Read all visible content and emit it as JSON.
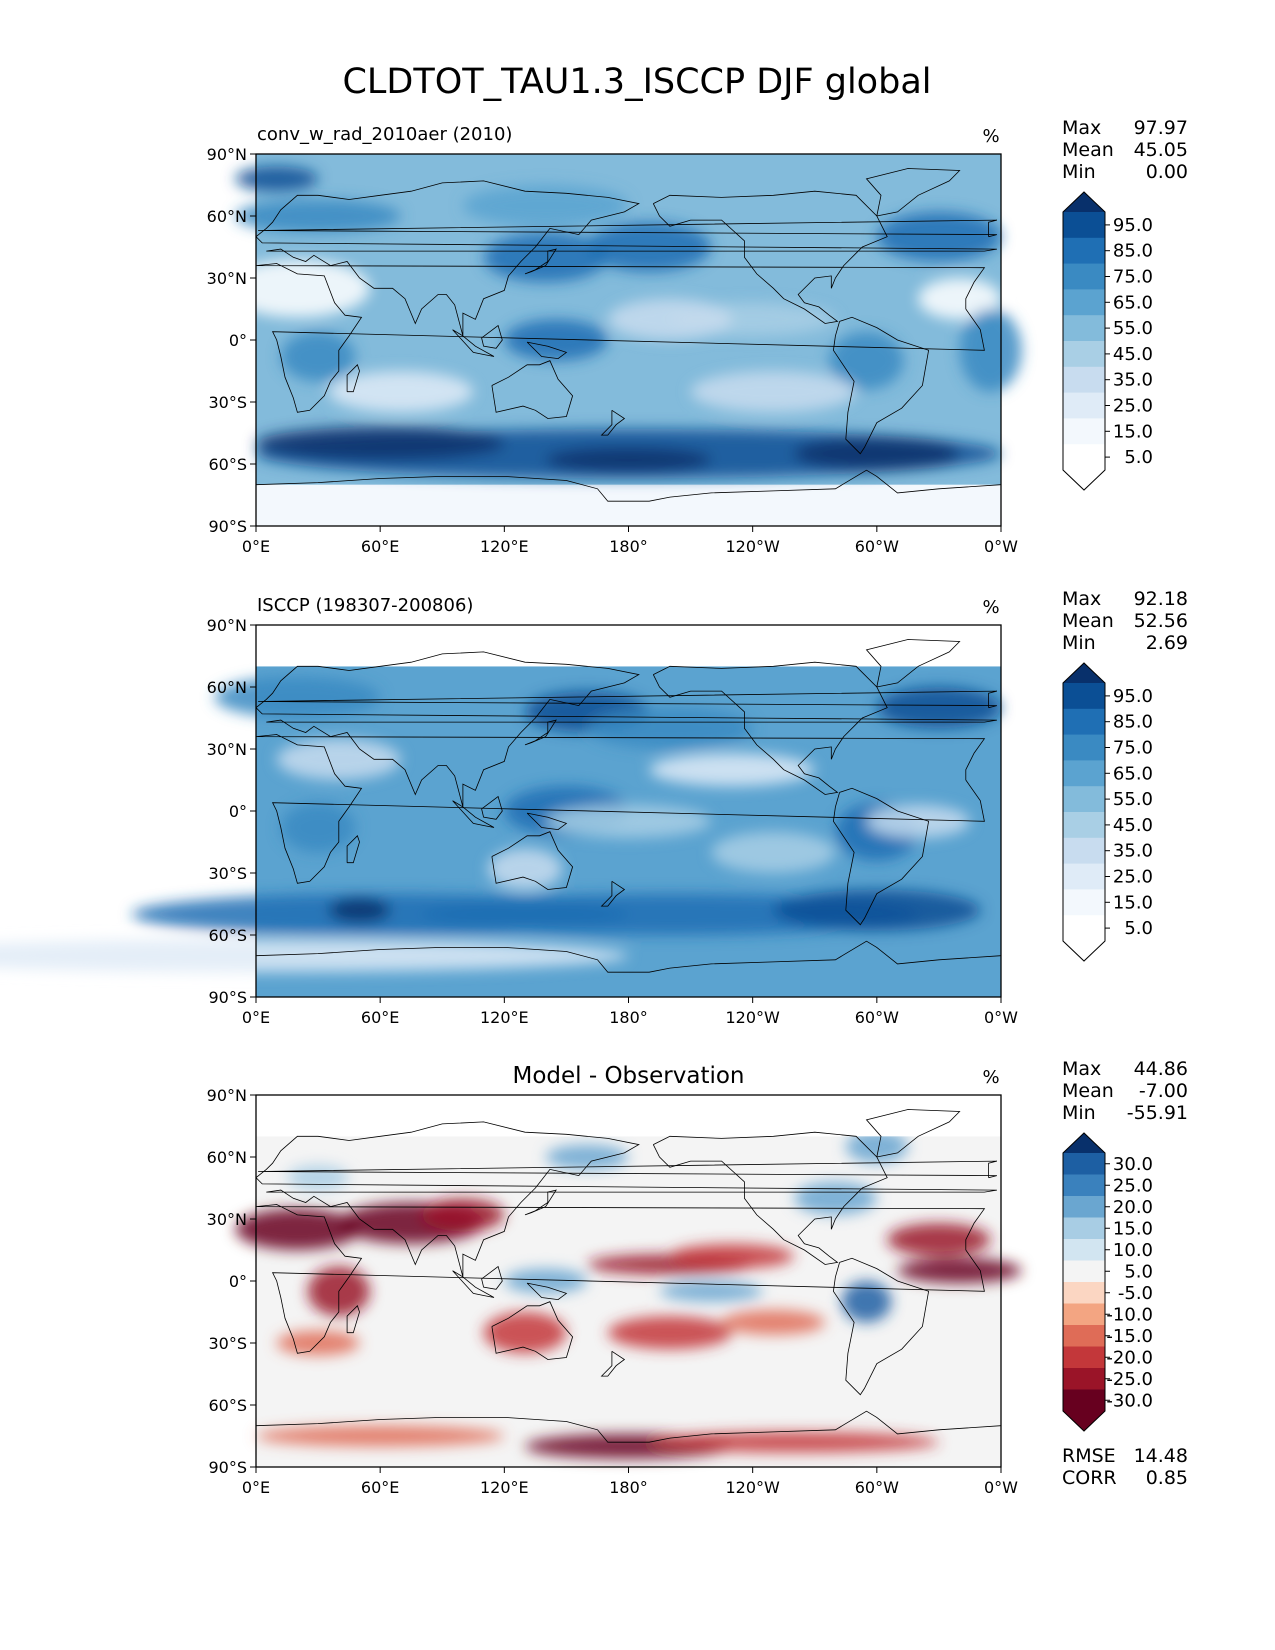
{
  "figure": {
    "title": "CLDTOT_TAU1.3_ISCCP DJF global"
  },
  "axes": {
    "xticks": [
      "0°E",
      "60°E",
      "120°E",
      "180°",
      "120°W",
      "60°W",
      "0°W"
    ],
    "yticks": [
      "90°N",
      "60°N",
      "30°N",
      "0°",
      "30°S",
      "60°S",
      "90°S"
    ]
  },
  "chart_data": [
    {
      "type": "heatmap",
      "title": "conv_w_rad_2010aer (2010)",
      "units": "%",
      "stats": [
        {
          "label": "Max",
          "value": "97.97"
        },
        {
          "label": "Mean",
          "value": "45.05"
        },
        {
          "label": "Min",
          "value": "0.00"
        }
      ],
      "colorbar": {
        "cmap": "Blues",
        "levels": [
          "95.0",
          "85.0",
          "75.0",
          "65.0",
          "55.0",
          "45.0",
          "35.0",
          "25.0",
          "15.0",
          "5.0"
        ],
        "colors": [
          "#08306b",
          "#0b4f95",
          "#1f6fb4",
          "#3a8ac2",
          "#5ba3d0",
          "#83bbdb",
          "#a9cfe5",
          "#c8dcef",
          "#dfebf7",
          "#f3f8fd",
          "#ffffff"
        ]
      },
      "xlim": [
        0,
        360
      ],
      "ylim": [
        -90,
        90
      ]
    },
    {
      "type": "heatmap",
      "title": "ISCCP (198307-200806)",
      "units": "%",
      "stats": [
        {
          "label": "Max",
          "value": "92.18"
        },
        {
          "label": "Mean",
          "value": "52.56"
        },
        {
          "label": "Min",
          "value": "2.69"
        }
      ],
      "colorbar": {
        "cmap": "Blues",
        "levels": [
          "95.0",
          "85.0",
          "75.0",
          "65.0",
          "55.0",
          "45.0",
          "35.0",
          "25.0",
          "15.0",
          "5.0"
        ],
        "colors": [
          "#08306b",
          "#0b4f95",
          "#1f6fb4",
          "#3a8ac2",
          "#5ba3d0",
          "#83bbdb",
          "#a9cfe5",
          "#c8dcef",
          "#dfebf7",
          "#f3f8fd",
          "#ffffff"
        ]
      },
      "xlim": [
        0,
        360
      ],
      "ylim": [
        -90,
        90
      ]
    },
    {
      "type": "heatmap",
      "title": "Model - Observation",
      "units": "%",
      "stats": [
        {
          "label": "Max",
          "value": "44.86"
        },
        {
          "label": "Mean",
          "value": "-7.00"
        },
        {
          "label": "Min",
          "value": "-55.91"
        }
      ],
      "extra_stats": [
        {
          "label": "RMSE",
          "value": "14.48"
        },
        {
          "label": "CORR",
          "value": "0.85"
        }
      ],
      "colorbar": {
        "cmap": "RdBu_r",
        "levels": [
          "30.0",
          "25.0",
          "20.0",
          "15.0",
          "10.0",
          "5.0",
          "-5.0",
          "-10.0",
          "-15.0",
          "-20.0",
          "-25.0",
          "-30.0"
        ],
        "colors": [
          "#08306b",
          "#1d5fa3",
          "#3a81bd",
          "#6aa6d0",
          "#a8cde4",
          "#d2e5f1",
          "#f4f4f4",
          "#fbd6c2",
          "#f3a582",
          "#df6c57",
          "#c3373a",
          "#9a1428",
          "#67001f"
        ]
      },
      "xlim": [
        0,
        360
      ],
      "ylim": [
        -90,
        90
      ]
    }
  ]
}
